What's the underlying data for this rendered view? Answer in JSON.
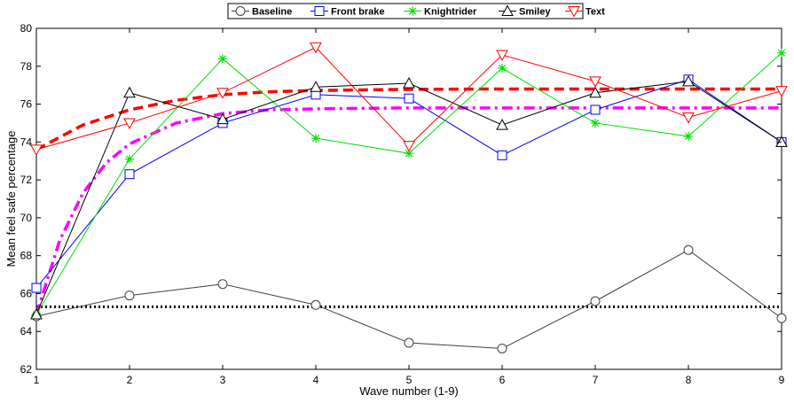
{
  "chart_data": {
    "type": "line",
    "title": "",
    "xlabel": "Wave number (1-9)",
    "ylabel": "Mean feel safe percentage",
    "x": [
      1,
      2,
      3,
      4,
      5,
      6,
      7,
      8,
      9
    ],
    "xlim": [
      1,
      9
    ],
    "ylim": [
      62,
      80
    ],
    "yticks": [
      62,
      64,
      66,
      68,
      70,
      72,
      74,
      76,
      78,
      80
    ],
    "xticks": [
      1,
      2,
      3,
      4,
      5,
      6,
      7,
      8,
      9
    ],
    "grid": false,
    "legend_position": "top",
    "series": [
      {
        "name": "Baseline",
        "color": "#404040",
        "marker": "circle",
        "values": [
          64.8,
          65.9,
          66.5,
          65.4,
          63.4,
          63.1,
          65.6,
          68.3,
          64.7
        ]
      },
      {
        "name": "Front brake",
        "color": "#0000ff",
        "marker": "square",
        "values": [
          66.3,
          72.3,
          75.0,
          76.5,
          76.3,
          73.3,
          75.7,
          77.3,
          74.0
        ]
      },
      {
        "name": "Knightrider",
        "color": "#00e000",
        "marker": "asterisk",
        "values": [
          64.9,
          73.1,
          78.4,
          74.2,
          73.4,
          77.9,
          75.0,
          74.3,
          78.7
        ]
      },
      {
        "name": "Smiley",
        "color": "#000000",
        "marker": "triangle-up",
        "values": [
          64.9,
          76.6,
          75.2,
          76.9,
          77.1,
          74.9,
          76.6,
          77.2,
          74.0
        ]
      },
      {
        "name": "Text",
        "color": "#ff0000",
        "marker": "triangle-down",
        "values": [
          73.6,
          75.0,
          76.6,
          79.0,
          73.8,
          78.6,
          77.2,
          75.3,
          76.7
        ]
      }
    ],
    "fits": [
      {
        "color": "#000000",
        "style": "dotted",
        "x": [
          1,
          9
        ],
        "y": [
          65.3,
          65.3
        ]
      },
      {
        "color": "#ff0000",
        "style": "dashed",
        "x": [
          1,
          1.5,
          2,
          2.5,
          3,
          3.5,
          4,
          5,
          6,
          7,
          8,
          9
        ],
        "y": [
          73.6,
          74.9,
          75.7,
          76.2,
          76.5,
          76.65,
          76.72,
          76.78,
          76.8,
          76.8,
          76.8,
          76.8
        ]
      },
      {
        "color": "#ff00ff",
        "style": "dashdot",
        "x": [
          1,
          1.25,
          1.5,
          1.75,
          2,
          2.5,
          3,
          3.5,
          4,
          5,
          6,
          7,
          8,
          9
        ],
        "y": [
          64.9,
          68.8,
          71.3,
          72.9,
          73.9,
          75.0,
          75.5,
          75.7,
          75.75,
          75.8,
          75.8,
          75.8,
          75.8,
          75.8
        ]
      }
    ]
  }
}
